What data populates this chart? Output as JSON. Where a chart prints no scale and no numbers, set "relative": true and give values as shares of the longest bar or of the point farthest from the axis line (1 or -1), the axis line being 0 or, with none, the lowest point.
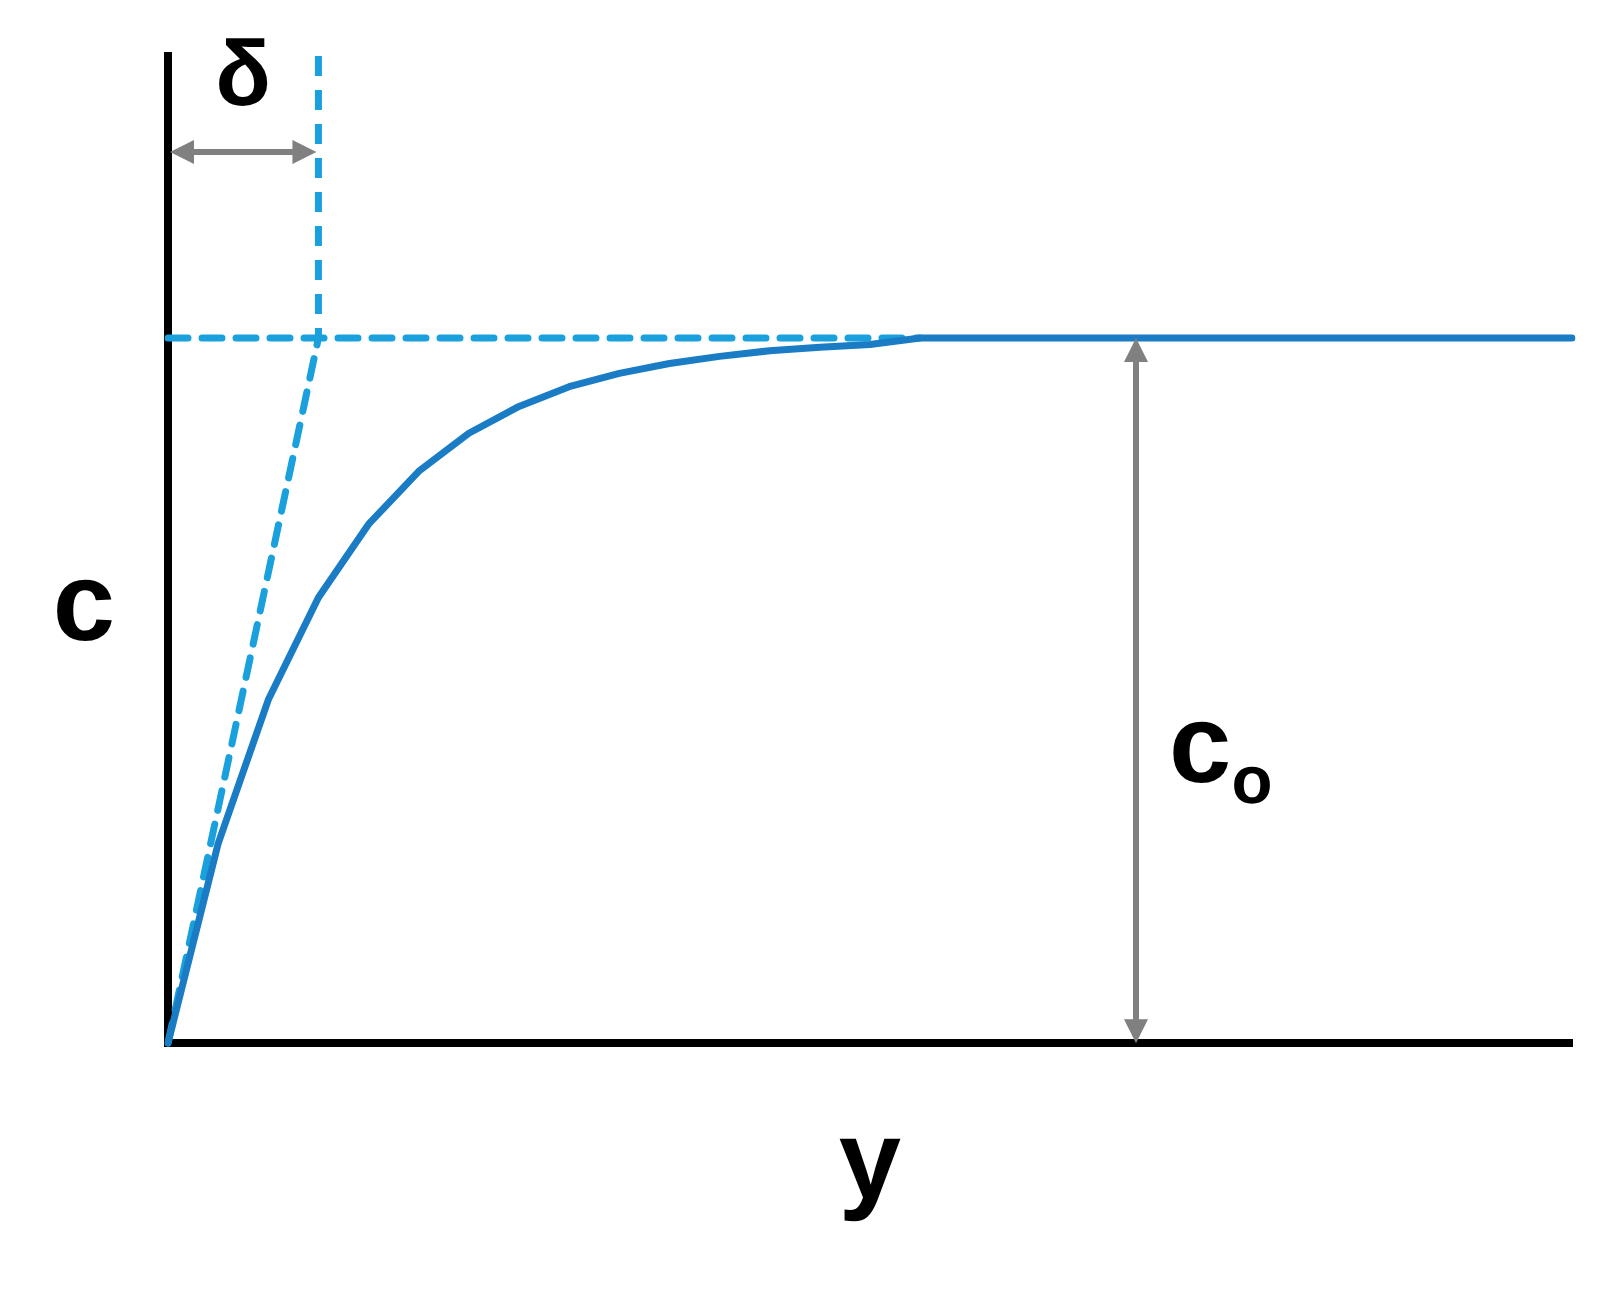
{
  "chart_data": {
    "type": "line",
    "xlabel": "y",
    "ylabel": "c",
    "relative": true,
    "grid": false,
    "legend": false,
    "marker": "none",
    "categories": [
      null,
      null,
      null,
      null,
      null,
      null,
      null,
      null,
      null,
      null,
      null,
      null,
      null,
      null,
      null,
      null,
      null,
      null,
      null,
      null,
      null,
      null,
      null,
      null,
      null,
      null,
      null,
      null,
      null
    ],
    "series": [
      {
        "color": "#1a7cc4",
        "line_style": "solid",
        "values": [
          0,
          0.283,
          0.487,
          0.632,
          0.736,
          0.811,
          0.865,
          0.903,
          0.931,
          0.95,
          0.964,
          0.974,
          0.982,
          0.987,
          0.991,
          1,
          1,
          1,
          1,
          1,
          1,
          1,
          1,
          1,
          1,
          1,
          1,
          1,
          1
        ]
      },
      {
        "color": "#1aa0dc",
        "line_style": "dashed",
        "values": [
          0,
          0.333,
          0.667,
          1,
          null,
          null,
          null,
          null,
          null,
          null,
          null,
          null,
          null,
          null,
          null,
          null,
          null,
          null,
          null,
          null,
          null,
          null,
          null,
          null,
          null,
          null,
          null,
          null,
          null
        ]
      },
      {
        "color": "#1aa0dc",
        "line_style": "dashed",
        "values": [
          1,
          1,
          1,
          1,
          1,
          1,
          1,
          1,
          1,
          1,
          1,
          1,
          1,
          1,
          1,
          1,
          null,
          null,
          null,
          null,
          null,
          null,
          null,
          null,
          null,
          null,
          null,
          null,
          null
        ]
      }
    ],
    "annotations": [
      "δ",
      "c$_{o}$"
    ]
  }
}
